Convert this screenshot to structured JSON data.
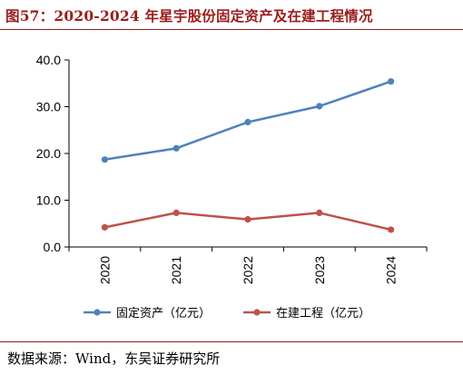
{
  "figure": {
    "title": "图57：2020-2024 年星宇股份固定资产及在建工程情况",
    "source": "数据来源：Wind，东吴证券研究所"
  },
  "chart_data": {
    "type": "line",
    "title": "",
    "xlabel": "",
    "ylabel": "",
    "categories": [
      "2020",
      "2021",
      "2022",
      "2023",
      "2024"
    ],
    "series": [
      {
        "name": "固定资产（亿元）",
        "values": [
          18.7,
          21.1,
          26.7,
          30.1,
          35.4
        ],
        "color": "#4f81bd"
      },
      {
        "name": "在建工程（亿元）",
        "values": [
          4.2,
          7.3,
          5.9,
          7.3,
          3.7
        ],
        "color": "#c0504d"
      }
    ],
    "ylim": [
      0,
      40
    ],
    "yticks": [
      "0.0",
      "10.0",
      "20.0",
      "30.0",
      "40.0"
    ],
    "grid": false,
    "legend": "bottom"
  }
}
